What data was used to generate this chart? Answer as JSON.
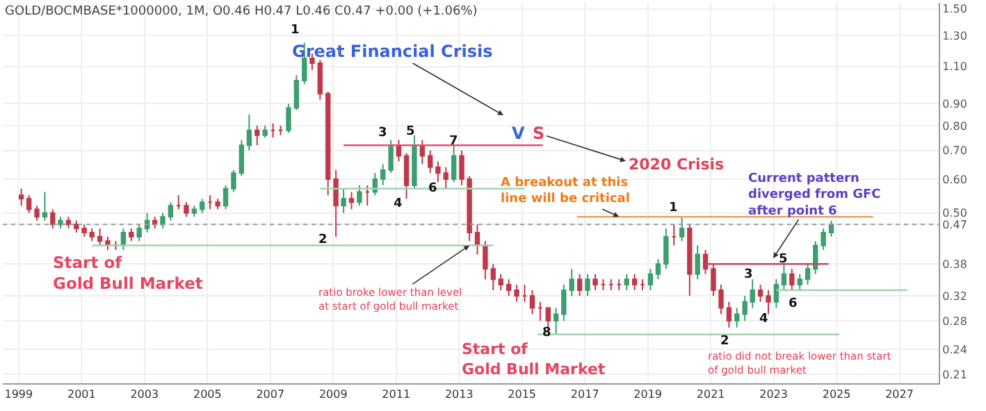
{
  "chart_data": {
    "type": "candlestick",
    "title": "GOLD/BOCMBASE*1000000, 1M, O0.46 H0.47 L0.46 C0.47 +0.00 (+1.06%)",
    "x": [
      "1999-02",
      "1999-05",
      "1999-08",
      "1999-11",
      "2000-02",
      "2000-05",
      "2000-08",
      "2000-11",
      "2001-02",
      "2001-05",
      "2001-08",
      "2001-11",
      "2002-02",
      "2002-05",
      "2002-08",
      "2002-11",
      "2003-02",
      "2003-05",
      "2003-08",
      "2003-11",
      "2004-02",
      "2004-05",
      "2004-08",
      "2004-11",
      "2005-02",
      "2005-05",
      "2005-08",
      "2005-11",
      "2006-02",
      "2006-05",
      "2006-08",
      "2006-11",
      "2007-02",
      "2007-05",
      "2007-08",
      "2007-11",
      "2008-02",
      "2008-05",
      "2008-08",
      "2008-11",
      "2009-02",
      "2009-05",
      "2009-08",
      "2009-11",
      "2010-02",
      "2010-05",
      "2010-08",
      "2010-11",
      "2011-02",
      "2011-05",
      "2011-08",
      "2011-11",
      "2012-02",
      "2012-05",
      "2012-08",
      "2012-11",
      "2013-02",
      "2013-05",
      "2013-08",
      "2013-11",
      "2014-02",
      "2014-05",
      "2014-08",
      "2014-11",
      "2015-02",
      "2015-05",
      "2015-08",
      "2015-11",
      "2016-02",
      "2016-05",
      "2016-08",
      "2016-11",
      "2017-02",
      "2017-05",
      "2017-08",
      "2017-11",
      "2018-02",
      "2018-05",
      "2018-08",
      "2018-11",
      "2019-02",
      "2019-05",
      "2019-08",
      "2019-11",
      "2020-02",
      "2020-05",
      "2020-08",
      "2020-11",
      "2021-02",
      "2021-05",
      "2021-08",
      "2021-11",
      "2022-02",
      "2022-05",
      "2022-08",
      "2022-11",
      "2023-02",
      "2023-05",
      "2023-08",
      "2023-11",
      "2024-02",
      "2024-05",
      "2024-08",
      "2024-11"
    ],
    "ohlc": [
      [
        0.55,
        0.57,
        0.52,
        0.54
      ],
      [
        0.54,
        0.55,
        0.5,
        0.51
      ],
      [
        0.51,
        0.52,
        0.48,
        0.49
      ],
      [
        0.49,
        0.56,
        0.48,
        0.5
      ],
      [
        0.5,
        0.51,
        0.46,
        0.47
      ],
      [
        0.47,
        0.49,
        0.46,
        0.48
      ],
      [
        0.48,
        0.49,
        0.46,
        0.47
      ],
      [
        0.47,
        0.48,
        0.45,
        0.46
      ],
      [
        0.46,
        0.47,
        0.44,
        0.45
      ],
      [
        0.45,
        0.46,
        0.43,
        0.44
      ],
      [
        0.44,
        0.46,
        0.42,
        0.43
      ],
      [
        0.43,
        0.44,
        0.41,
        0.42
      ],
      [
        0.42,
        0.43,
        0.41,
        0.42
      ],
      [
        0.42,
        0.46,
        0.41,
        0.45
      ],
      [
        0.45,
        0.46,
        0.43,
        0.44
      ],
      [
        0.44,
        0.47,
        0.43,
        0.46
      ],
      [
        0.46,
        0.5,
        0.45,
        0.48
      ],
      [
        0.48,
        0.49,
        0.46,
        0.47
      ],
      [
        0.47,
        0.5,
        0.46,
        0.49
      ],
      [
        0.49,
        0.53,
        0.48,
        0.52
      ],
      [
        0.52,
        0.55,
        0.51,
        0.52
      ],
      [
        0.52,
        0.53,
        0.49,
        0.5
      ],
      [
        0.5,
        0.52,
        0.49,
        0.51
      ],
      [
        0.51,
        0.54,
        0.5,
        0.53
      ],
      [
        0.53,
        0.55,
        0.51,
        0.53
      ],
      [
        0.53,
        0.54,
        0.51,
        0.52
      ],
      [
        0.52,
        0.58,
        0.51,
        0.57
      ],
      [
        0.57,
        0.63,
        0.56,
        0.62
      ],
      [
        0.62,
        0.74,
        0.61,
        0.72
      ],
      [
        0.72,
        0.85,
        0.7,
        0.78
      ],
      [
        0.78,
        0.8,
        0.72,
        0.76
      ],
      [
        0.76,
        0.8,
        0.75,
        0.78
      ],
      [
        0.78,
        0.81,
        0.75,
        0.78
      ],
      [
        0.78,
        0.8,
        0.76,
        0.78
      ],
      [
        0.78,
        0.9,
        0.77,
        0.88
      ],
      [
        0.88,
        1.05,
        0.87,
        1.02
      ],
      [
        1.02,
        1.25,
        1.0,
        1.15
      ],
      [
        1.15,
        1.18,
        1.08,
        1.12
      ],
      [
        1.12,
        1.14,
        0.92,
        0.95
      ],
      [
        0.95,
        0.96,
        0.55,
        0.6
      ],
      [
        0.6,
        0.63,
        0.44,
        0.52
      ],
      [
        0.52,
        0.57,
        0.5,
        0.54
      ],
      [
        0.54,
        0.56,
        0.51,
        0.53
      ],
      [
        0.53,
        0.58,
        0.52,
        0.56
      ],
      [
        0.56,
        0.58,
        0.52,
        0.56
      ],
      [
        0.56,
        0.62,
        0.55,
        0.6
      ],
      [
        0.6,
        0.65,
        0.58,
        0.63
      ],
      [
        0.63,
        0.74,
        0.62,
        0.72
      ],
      [
        0.72,
        0.74,
        0.66,
        0.68
      ],
      [
        0.68,
        0.69,
        0.54,
        0.58
      ],
      [
        0.58,
        0.76,
        0.57,
        0.72
      ],
      [
        0.72,
        0.74,
        0.65,
        0.68
      ],
      [
        0.68,
        0.7,
        0.62,
        0.64
      ],
      [
        0.64,
        0.66,
        0.59,
        0.62
      ],
      [
        0.62,
        0.64,
        0.57,
        0.6
      ],
      [
        0.6,
        0.72,
        0.59,
        0.68
      ],
      [
        0.68,
        0.7,
        0.58,
        0.6
      ],
      [
        0.6,
        0.61,
        0.43,
        0.45
      ],
      [
        0.45,
        0.47,
        0.4,
        0.42
      ],
      [
        0.42,
        0.43,
        0.35,
        0.37
      ],
      [
        0.37,
        0.38,
        0.33,
        0.35
      ],
      [
        0.35,
        0.36,
        0.33,
        0.34
      ],
      [
        0.34,
        0.35,
        0.32,
        0.33
      ],
      [
        0.33,
        0.34,
        0.31,
        0.32
      ],
      [
        0.32,
        0.34,
        0.31,
        0.32
      ],
      [
        0.32,
        0.33,
        0.29,
        0.3
      ],
      [
        0.3,
        0.31,
        0.28,
        0.3
      ],
      [
        0.3,
        0.3,
        0.27,
        0.28
      ],
      [
        0.28,
        0.3,
        0.26,
        0.29
      ],
      [
        0.29,
        0.34,
        0.28,
        0.33
      ],
      [
        0.33,
        0.37,
        0.32,
        0.35
      ],
      [
        0.35,
        0.36,
        0.32,
        0.33
      ],
      [
        0.33,
        0.36,
        0.32,
        0.35
      ],
      [
        0.35,
        0.36,
        0.33,
        0.34
      ],
      [
        0.34,
        0.35,
        0.33,
        0.34
      ],
      [
        0.34,
        0.35,
        0.33,
        0.34
      ],
      [
        0.34,
        0.35,
        0.33,
        0.34
      ],
      [
        0.34,
        0.36,
        0.33,
        0.35
      ],
      [
        0.35,
        0.36,
        0.33,
        0.34
      ],
      [
        0.34,
        0.35,
        0.33,
        0.34
      ],
      [
        0.34,
        0.37,
        0.33,
        0.36
      ],
      [
        0.36,
        0.39,
        0.35,
        0.38
      ],
      [
        0.38,
        0.46,
        0.37,
        0.44
      ],
      [
        0.44,
        0.47,
        0.42,
        0.44
      ],
      [
        0.44,
        0.49,
        0.43,
        0.46
      ],
      [
        0.46,
        0.47,
        0.32,
        0.36
      ],
      [
        0.36,
        0.42,
        0.35,
        0.4
      ],
      [
        0.4,
        0.41,
        0.36,
        0.37
      ],
      [
        0.37,
        0.38,
        0.32,
        0.33
      ],
      [
        0.33,
        0.34,
        0.29,
        0.3
      ],
      [
        0.3,
        0.31,
        0.27,
        0.28
      ],
      [
        0.28,
        0.3,
        0.27,
        0.29
      ],
      [
        0.29,
        0.32,
        0.28,
        0.31
      ],
      [
        0.31,
        0.35,
        0.3,
        0.33
      ],
      [
        0.33,
        0.34,
        0.31,
        0.32
      ],
      [
        0.32,
        0.33,
        0.29,
        0.31
      ],
      [
        0.31,
        0.35,
        0.3,
        0.34
      ],
      [
        0.34,
        0.38,
        0.33,
        0.36
      ],
      [
        0.36,
        0.37,
        0.33,
        0.34
      ],
      [
        0.34,
        0.36,
        0.33,
        0.35
      ],
      [
        0.35,
        0.38,
        0.34,
        0.37
      ],
      [
        0.37,
        0.43,
        0.36,
        0.42
      ],
      [
        0.42,
        0.46,
        0.41,
        0.45
      ],
      [
        0.45,
        0.48,
        0.44,
        0.47
      ]
    ],
    "colors": [
      "#c0394b",
      "#c0394b",
      "#c0394b",
      "#3d9e6f",
      "#c0394b",
      "#3d9e6f",
      "#c0394b",
      "#c0394b",
      "#c0394b",
      "#c0394b",
      "#c0394b",
      "#c0394b",
      "#c0394b",
      "#3d9e6f",
      "#c0394b",
      "#3d9e6f",
      "#3d9e6f",
      "#c0394b",
      "#3d9e6f",
      "#3d9e6f",
      "#c0394b",
      "#c0394b",
      "#3d9e6f",
      "#3d9e6f",
      "#c0394b",
      "#c0394b",
      "#3d9e6f",
      "#3d9e6f",
      "#3d9e6f",
      "#3d9e6f",
      "#c0394b",
      "#3d9e6f",
      "#c0394b",
      "#c0394b",
      "#3d9e6f",
      "#3d9e6f",
      "#3d9e6f",
      "#c0394b",
      "#c0394b",
      "#c0394b",
      "#c0394b",
      "#3d9e6f",
      "#c0394b",
      "#3d9e6f",
      "#c0394b",
      "#3d9e6f",
      "#3d9e6f",
      "#3d9e6f",
      "#c0394b",
      "#c0394b",
      "#3d9e6f",
      "#c0394b",
      "#c0394b",
      "#c0394b",
      "#c0394b",
      "#3d9e6f",
      "#c0394b",
      "#c0394b",
      "#c0394b",
      "#c0394b",
      "#c0394b",
      "#c0394b",
      "#c0394b",
      "#c0394b",
      "#c0394b",
      "#c0394b",
      "#c0394b",
      "#c0394b",
      "#3d9e6f",
      "#3d9e6f",
      "#3d9e6f",
      "#c0394b",
      "#3d9e6f",
      "#c0394b",
      "#c0394b",
      "#c0394b",
      "#c0394b",
      "#3d9e6f",
      "#c0394b",
      "#c0394b",
      "#3d9e6f",
      "#3d9e6f",
      "#3d9e6f",
      "#c0394b",
      "#3d9e6f",
      "#c0394b",
      "#3d9e6f",
      "#c0394b",
      "#c0394b",
      "#c0394b",
      "#c0394b",
      "#3d9e6f",
      "#3d9e6f",
      "#3d9e6f",
      "#c0394b",
      "#c0394b",
      "#3d9e6f",
      "#3d9e6f",
      "#c0394b",
      "#3d9e6f",
      "#3d9e6f",
      "#3d9e6f",
      "#3d9e6f",
      "#3d9e6f"
    ],
    "series": [
      {
        "type": "line",
        "color": "#e05070",
        "x": [
          "2009-05",
          "2015-09"
        ],
        "values": [
          0.72,
          0.72
        ]
      },
      {
        "type": "line",
        "color": "#9fd4ad",
        "x": [
          "2008-08",
          "2015-02"
        ],
        "values": [
          0.57,
          0.57
        ]
      },
      {
        "type": "line",
        "color": "#9fd4ad",
        "x": [
          "2001-05",
          "2014-02"
        ],
        "values": [
          0.42,
          0.42
        ]
      },
      {
        "type": "line",
        "color": "#f0a060",
        "x": [
          "2016-10",
          "2026-03"
        ],
        "values": [
          0.49,
          0.49
        ]
      },
      {
        "type": "line",
        "color": "#d04060",
        "x": [
          "2020-11",
          "2024-10"
        ],
        "values": [
          0.38,
          0.38
        ]
      },
      {
        "type": "line",
        "color": "#9fd4ad",
        "x": [
          "2023-02",
          "2027-04"
        ],
        "values": [
          0.33,
          0.33
        ]
      },
      {
        "type": "line",
        "color": "#9fd4ad",
        "x": [
          "2015-07",
          "2025-02"
        ],
        "values": [
          0.26,
          0.26
        ]
      }
    ],
    "ref_lines": [
      {
        "axis": "y",
        "value": 0.47,
        "color": "#999999",
        "line_style": "dotted"
      }
    ],
    "xlim": [
      "1998-07",
      "2028-04"
    ],
    "xticks": [
      "1999",
      "2001",
      "2003",
      "2005",
      "2007",
      "2009",
      "2011",
      "2013",
      "2015",
      "2017",
      "2019",
      "2021",
      "2023",
      "2025",
      "2027"
    ],
    "ylim": [
      0.2,
      1.55
    ],
    "log": true,
    "yticks": [
      0.21,
      0.24,
      0.28,
      0.32,
      0.38,
      0.47,
      {
        "value": 0.5,
        "label": "0.50"
      },
      {
        "value": 0.6,
        "label": "0.60"
      },
      {
        "value": 0.7,
        "label": "0.70"
      },
      {
        "value": 0.8,
        "label": "0.80"
      },
      {
        "value": 0.9,
        "label": "0.90"
      },
      {
        "value": 1.1,
        "label": "1.10"
      },
      {
        "value": 1.3,
        "label": "1.30"
      },
      {
        "value": 1.5,
        "label": "1.50"
      }
    ],
    "grid": true,
    "annotations": [
      "1",
      "2",
      "3",
      "4",
      "5",
      "6",
      "7",
      "8",
      "1",
      "2",
      "3",
      "4",
      "5",
      "6",
      "Great Financial Crisis",
      "V",
      "S",
      "2020 Crisis",
      {
        "text": "A breakout at this\nline will be critical",
        "x": "2018-02",
        "y": 0.49
      },
      "Current pattern\ndiverged from GFC\nafter point 6",
      {
        "text": "ratio broke lower than level\nat start of gold bull market",
        "x": "2013-05",
        "y": 0.42
      },
      "Start of\nGold Bull Market",
      "Start of\nGold Bull Market",
      "ratio did not break lower than start\nof gold bull market"
    ]
  }
}
